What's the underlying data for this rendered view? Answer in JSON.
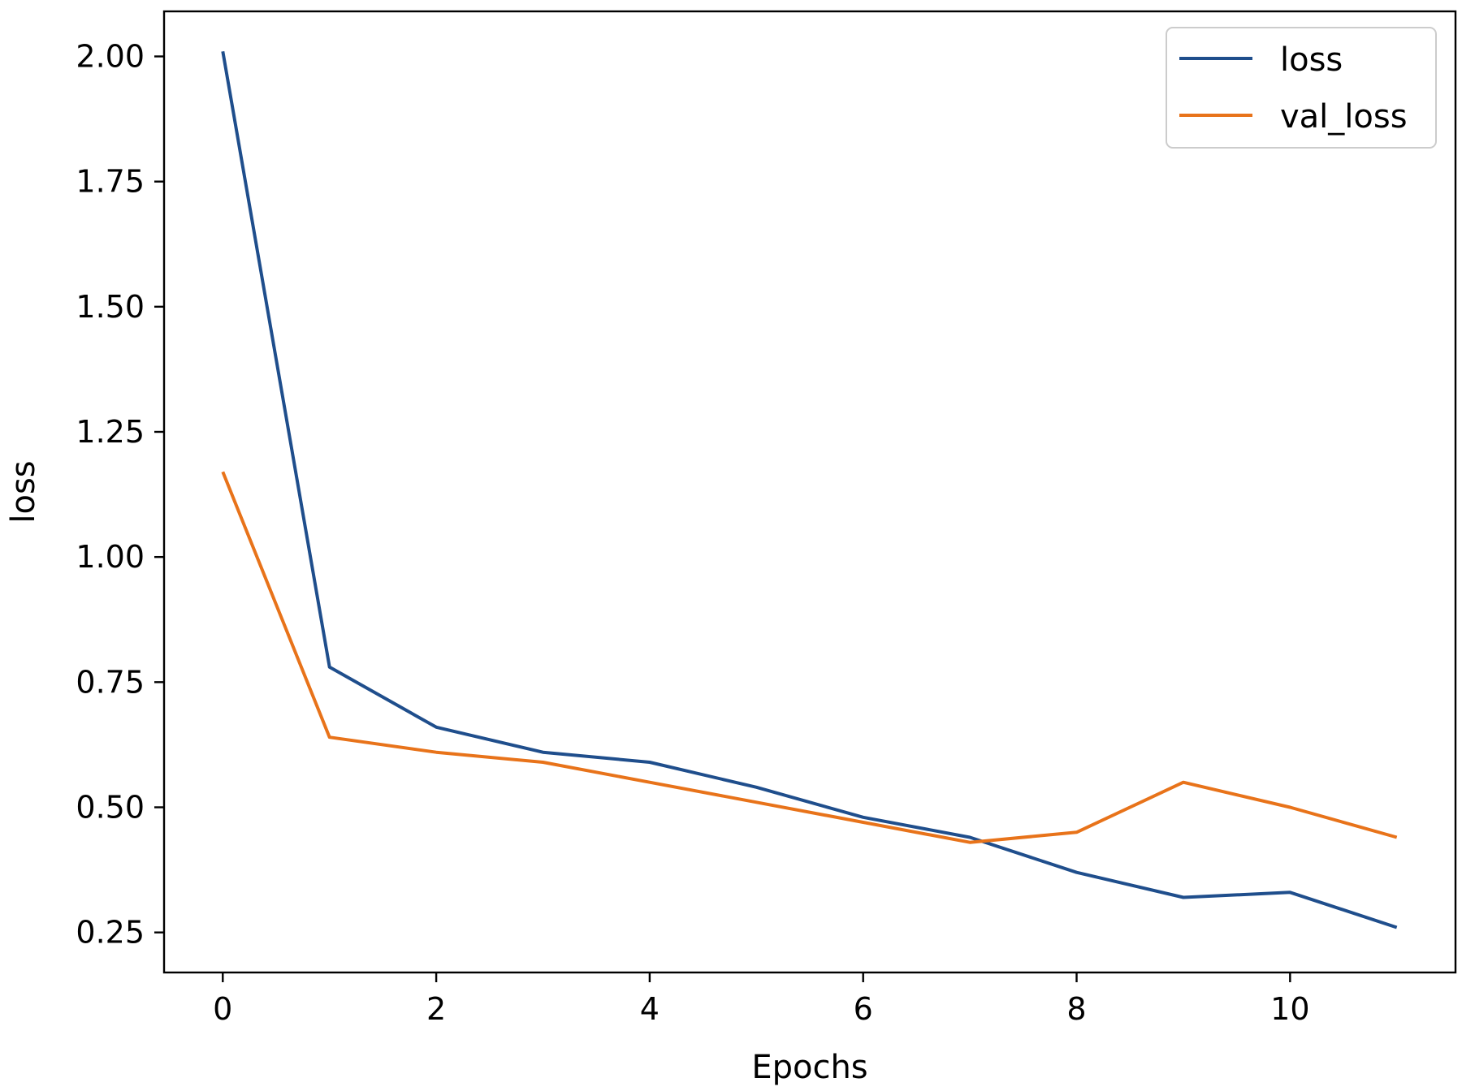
{
  "chart_data": {
    "type": "line",
    "title": "",
    "xlabel": "Epochs",
    "ylabel": "loss",
    "xlim": [
      -0.55,
      11.55
    ],
    "ylim": [
      0.17,
      2.09
    ],
    "xticks": [
      0,
      2,
      4,
      6,
      8,
      10
    ],
    "xtick_labels": [
      "0",
      "2",
      "4",
      "6",
      "8",
      "10"
    ],
    "yticks": [
      0.25,
      0.5,
      0.75,
      1.0,
      1.25,
      1.5,
      1.75,
      2.0
    ],
    "ytick_labels": [
      "0.25",
      "0.50",
      "0.75",
      "1.00",
      "1.25",
      "1.50",
      "1.75",
      "2.00"
    ],
    "grid": false,
    "legend_position": "top-right",
    "x": [
      0,
      1,
      2,
      3,
      4,
      5,
      6,
      7,
      8,
      9,
      10,
      11
    ],
    "series": [
      {
        "name": "loss",
        "color": "#1f4e8c",
        "values": [
          2.01,
          0.78,
          0.66,
          0.61,
          0.59,
          0.54,
          0.48,
          0.44,
          0.37,
          0.32,
          0.33,
          0.26
        ]
      },
      {
        "name": "val_loss",
        "color": "#e8731a",
        "values": [
          1.17,
          0.64,
          0.61,
          0.59,
          0.55,
          0.51,
          0.47,
          0.43,
          0.45,
          0.55,
          0.5,
          0.44
        ]
      }
    ]
  }
}
